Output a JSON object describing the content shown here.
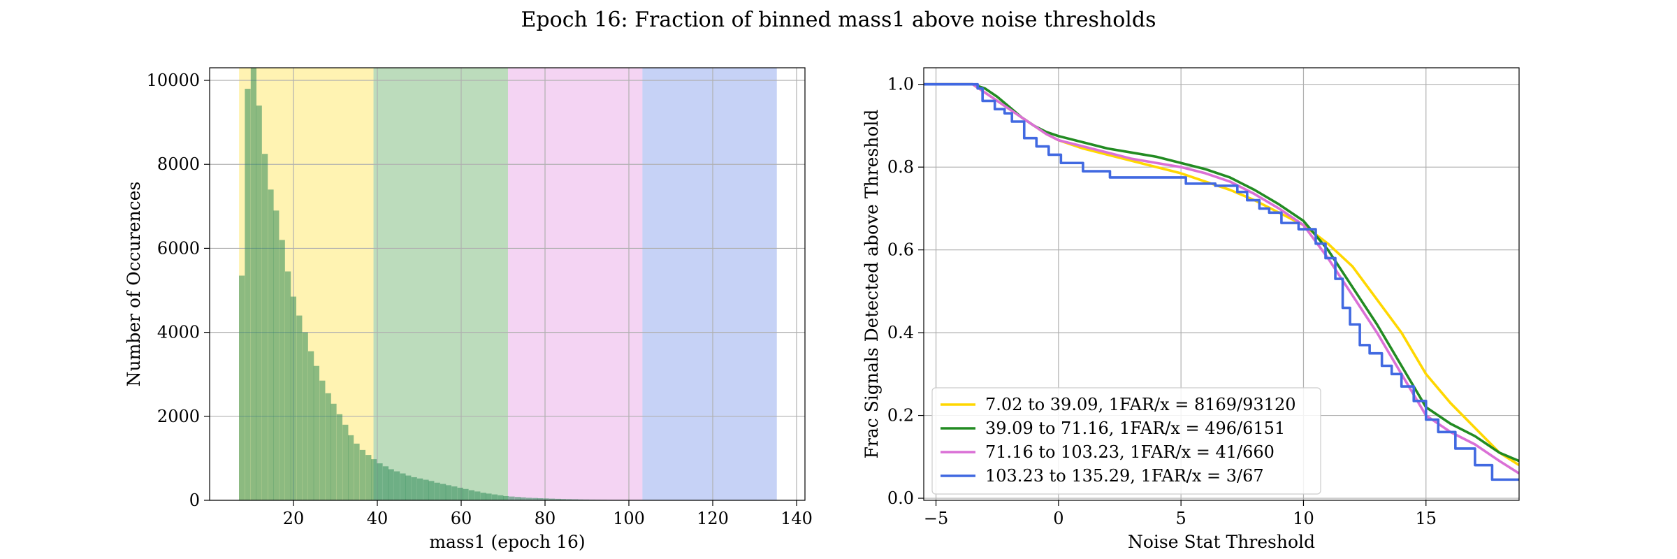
{
  "figure_title": "Epoch 16: Fraction of binned mass1 above noise thresholds",
  "colors": {
    "bin1": "#FFD700",
    "bin2": "#228B22",
    "bin3": "#DA70D6",
    "bin4": "#4169E1",
    "hist": "#2E8B57"
  },
  "chart_data": [
    {
      "type": "bar",
      "subtype": "histogram",
      "xlabel": "mass1 (epoch 16)",
      "ylabel": "Number of Occurences",
      "xlim": [
        0,
        142
      ],
      "ylim": [
        0,
        10300
      ],
      "xticks": [
        20,
        40,
        60,
        80,
        100,
        120,
        140
      ],
      "yticks": [
        0,
        2000,
        4000,
        6000,
        8000,
        10000
      ],
      "grid": true,
      "bin_width": 1.37,
      "shaded_ranges": [
        {
          "from": 7.02,
          "to": 39.09,
          "color": "#FFD700"
        },
        {
          "from": 39.09,
          "to": 71.16,
          "color": "#228B22"
        },
        {
          "from": 71.16,
          "to": 103.23,
          "color": "#DA70D6"
        },
        {
          "from": 103.23,
          "to": 135.29,
          "color": "#4169E1"
        }
      ],
      "bin_starts": [
        7.0,
        8.4,
        9.8,
        11.1,
        12.5,
        13.9,
        15.2,
        16.6,
        18.0,
        19.3,
        20.7,
        22.1,
        23.5,
        24.8,
        26.2,
        27.6,
        28.9,
        30.3,
        31.7,
        33.0,
        34.4,
        35.8,
        37.2,
        38.5,
        39.9,
        41.3,
        42.6,
        44.0,
        45.4,
        46.7,
        48.1,
        49.5,
        50.9,
        52.2,
        53.6,
        55.0,
        56.3,
        57.7,
        59.1,
        60.4,
        61.8,
        63.2,
        64.6,
        65.9,
        67.3,
        68.7,
        70.0,
        71.4,
        72.8,
        74.1,
        75.5,
        76.9,
        78.2,
        79.6,
        81.0,
        82.4,
        83.7,
        85.1,
        86.5,
        87.8,
        89.2,
        90.6,
        91.9,
        93.3,
        94.7,
        96.1,
        97.4,
        98.8,
        100.2,
        101.5
      ],
      "values": [
        5350,
        9800,
        10300,
        9400,
        8250,
        7400,
        6900,
        6200,
        5450,
        4850,
        4400,
        4000,
        3550,
        3200,
        2850,
        2550,
        2300,
        2050,
        1800,
        1550,
        1350,
        1200,
        1080,
        980,
        880,
        810,
        740,
        690,
        640,
        590,
        550,
        520,
        490,
        460,
        420,
        390,
        360,
        330,
        300,
        270,
        240,
        210,
        180,
        160,
        140,
        120,
        100,
        90,
        80,
        70,
        60,
        55,
        50,
        45,
        40,
        35,
        30,
        27,
        24,
        20,
        18,
        15,
        13,
        11,
        9,
        8,
        6,
        5,
        4,
        3
      ]
    },
    {
      "type": "line",
      "xlabel": "Noise Stat Threshold",
      "ylabel": "Frac Signals Detected above Threshold",
      "xlim": [
        -5.5,
        18.8
      ],
      "ylim": [
        -0.005,
        1.04
      ],
      "xticks": [
        -5,
        0,
        5,
        10,
        15
      ],
      "yticks": [
        0.0,
        0.2,
        0.4,
        0.6,
        0.8,
        1.0
      ],
      "grid": true,
      "legend_position": "lower-left",
      "series": [
        {
          "name": "7.02 to 39.09, 1FAR/x = 8169/93120",
          "color": "#FFD700",
          "x": [
            -5.5,
            -4,
            -3.5,
            -3,
            -2.5,
            -2,
            -1.5,
            -1,
            -0.5,
            0,
            1,
            2,
            3,
            4,
            5,
            6,
            7,
            8,
            9,
            10,
            11,
            12,
            13,
            14,
            15,
            16,
            17,
            18,
            18.8
          ],
          "y": [
            1.0,
            1.0,
            1.0,
            0.98,
            0.96,
            0.94,
            0.92,
            0.9,
            0.88,
            0.865,
            0.845,
            0.83,
            0.815,
            0.8,
            0.785,
            0.765,
            0.745,
            0.72,
            0.69,
            0.66,
            0.615,
            0.56,
            0.48,
            0.4,
            0.3,
            0.23,
            0.17,
            0.11,
            0.08
          ]
        },
        {
          "name": "39.09 to 71.16, 1FAR/x = 496/6151",
          "color": "#228B22",
          "x": [
            -5.5,
            -4,
            -3.5,
            -3,
            -2.5,
            -2,
            -1.5,
            -1,
            -0.5,
            0,
            1,
            2,
            3,
            4,
            5,
            6,
            7,
            8,
            9,
            10,
            11,
            12,
            13,
            14,
            15,
            16,
            17,
            18,
            18.8
          ],
          "y": [
            1.0,
            1.0,
            1.0,
            0.99,
            0.97,
            0.945,
            0.92,
            0.9,
            0.885,
            0.875,
            0.86,
            0.845,
            0.835,
            0.825,
            0.81,
            0.795,
            0.775,
            0.745,
            0.71,
            0.67,
            0.6,
            0.51,
            0.42,
            0.32,
            0.22,
            0.18,
            0.15,
            0.11,
            0.09
          ]
        },
        {
          "name": "71.16 to 103.23, 1FAR/x = 41/660",
          "color": "#DA70D6",
          "x": [
            -5.5,
            -4,
            -3.5,
            -3,
            -2.5,
            -2,
            -1.5,
            -1,
            -0.5,
            0,
            1,
            2,
            3,
            4,
            5,
            6,
            7,
            8,
            9,
            10,
            11,
            12,
            13,
            14,
            15,
            16,
            17,
            18,
            18.8
          ],
          "y": [
            1.0,
            1.0,
            1.0,
            0.98,
            0.96,
            0.94,
            0.92,
            0.9,
            0.88,
            0.865,
            0.85,
            0.835,
            0.82,
            0.81,
            0.8,
            0.785,
            0.765,
            0.735,
            0.7,
            0.66,
            0.58,
            0.49,
            0.4,
            0.3,
            0.2,
            0.16,
            0.13,
            0.09,
            0.06
          ]
        },
        {
          "name": "103.23 to 135.29, 1FAR/x = 3/67",
          "color": "#4169E1",
          "stepped": true,
          "x": [
            -5.5,
            -3.3,
            -3.1,
            -2.6,
            -2.2,
            -1.9,
            -1.4,
            -0.9,
            -0.4,
            0.1,
            1.0,
            2.1,
            3.5,
            5.2,
            6.4,
            7.3,
            7.7,
            8.2,
            8.6,
            9.1,
            9.8,
            10.5,
            10.9,
            11.3,
            11.6,
            11.9,
            12.3,
            12.7,
            13.2,
            13.6,
            14.0,
            14.5,
            15.0,
            15.5,
            16.2,
            17.0,
            17.7,
            18.8
          ],
          "y": [
            1.0,
            0.99,
            0.96,
            0.94,
            0.93,
            0.91,
            0.87,
            0.85,
            0.83,
            0.81,
            0.79,
            0.775,
            0.775,
            0.76,
            0.755,
            0.74,
            0.72,
            0.7,
            0.69,
            0.665,
            0.65,
            0.615,
            0.58,
            0.53,
            0.46,
            0.42,
            0.37,
            0.35,
            0.32,
            0.3,
            0.27,
            0.235,
            0.19,
            0.16,
            0.12,
            0.08,
            0.045,
            0.045
          ]
        }
      ]
    }
  ]
}
